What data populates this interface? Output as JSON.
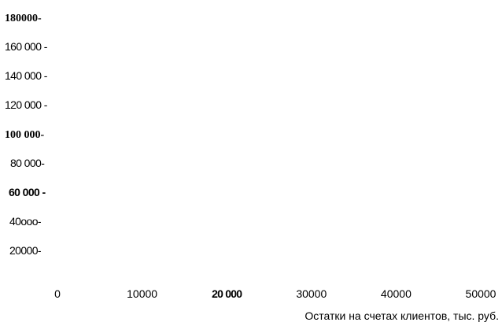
{
  "chart_data": {
    "type": "scatter",
    "title": "",
    "xlabel": "Остатки на счетах клиентов, тыс. руб.",
    "ylabel": "",
    "xlim": [
      0,
      50000
    ],
    "ylim": [
      20000,
      180000
    ],
    "grid": false,
    "x_ticks": [
      {
        "value": 0,
        "label": "0"
      },
      {
        "value": 10000,
        "label": "10000"
      },
      {
        "value": 20000,
        "label": "20 000"
      },
      {
        "value": 30000,
        "label": "30000"
      },
      {
        "value": 40000,
        "label": "40000"
      },
      {
        "value": 50000,
        "label": "50000"
      }
    ],
    "y_ticks": [
      {
        "value": 180000,
        "label": "180000-"
      },
      {
        "value": 160000,
        "label": "160 000 -"
      },
      {
        "value": 140000,
        "label": "140 000 -"
      },
      {
        "value": 120000,
        "label": "120 000 -"
      },
      {
        "value": 100000,
        "label": "100 000-"
      },
      {
        "value": 80000,
        "label": "80 000-"
      },
      {
        "value": 60000,
        "label": "60 000 -"
      },
      {
        "value": 40000,
        "label": "40ооо-"
      },
      {
        "value": 20000,
        "label": "20000-"
      }
    ],
    "series": []
  }
}
